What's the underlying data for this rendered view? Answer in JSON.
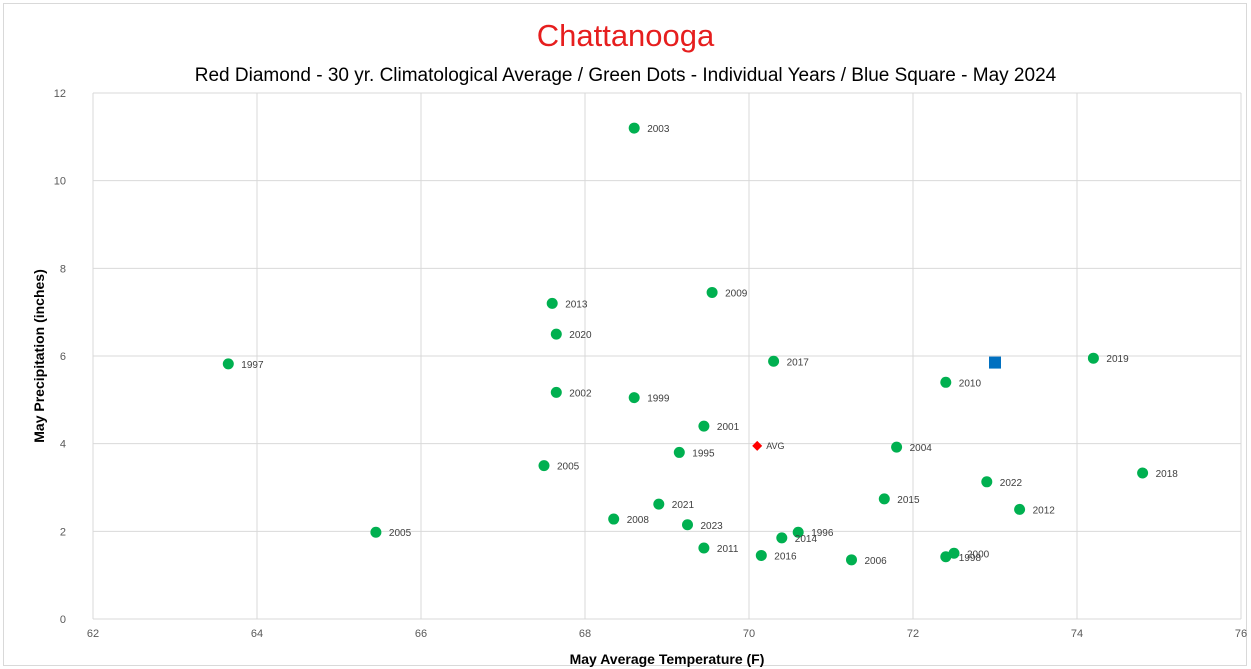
{
  "chart_data": {
    "type": "scatter",
    "title": "Chattanooga",
    "subtitle": "Red Diamond - 30 yr. Climatological Average / Green Dots - Individual Years / Blue Square - May 2024",
    "xlabel": "May Average Temperature (F)",
    "ylabel": "May Precipitation (inches)",
    "xlim": [
      62,
      76
    ],
    "ylim": [
      0,
      12
    ],
    "xticks": [
      62,
      64,
      66,
      68,
      70,
      72,
      74,
      76
    ],
    "yticks": [
      0,
      2,
      4,
      6,
      8,
      10,
      12
    ],
    "grid": true,
    "colors": {
      "years": "#00b050",
      "average": "#ff0000",
      "current": "#0070c0"
    },
    "years": [
      {
        "label": "2003",
        "x": 68.6,
        "y": 11.2
      },
      {
        "label": "2009",
        "x": 69.55,
        "y": 7.45
      },
      {
        "label": "2013",
        "x": 67.6,
        "y": 7.2
      },
      {
        "label": "2020",
        "x": 67.65,
        "y": 6.5
      },
      {
        "label": "1997",
        "x": 63.65,
        "y": 5.82
      },
      {
        "label": "2017",
        "x": 70.3,
        "y": 5.88
      },
      {
        "label": "2019",
        "x": 74.2,
        "y": 5.95
      },
      {
        "label": "2010",
        "x": 72.4,
        "y": 5.4
      },
      {
        "label": "2002",
        "x": 67.65,
        "y": 5.17
      },
      {
        "label": "1999",
        "x": 68.6,
        "y": 5.05
      },
      {
        "label": "2001",
        "x": 69.45,
        "y": 4.4
      },
      {
        "label": "2004",
        "x": 71.8,
        "y": 3.92
      },
      {
        "label": "1995",
        "x": 69.15,
        "y": 3.8
      },
      {
        "label": "2005",
        "x": 67.5,
        "y": 3.5
      },
      {
        "label": "2018",
        "x": 74.8,
        "y": 3.33
      },
      {
        "label": "2022",
        "x": 72.9,
        "y": 3.13
      },
      {
        "label": "2015",
        "x": 71.65,
        "y": 2.74
      },
      {
        "label": "2021",
        "x": 68.9,
        "y": 2.62
      },
      {
        "label": "2012",
        "x": 73.3,
        "y": 2.5
      },
      {
        "label": "2008",
        "x": 68.35,
        "y": 2.28
      },
      {
        "label": "2023",
        "x": 69.25,
        "y": 2.15
      },
      {
        "label": "2005",
        "x": 65.45,
        "y": 1.98
      },
      {
        "label": "1996",
        "x": 70.6,
        "y": 1.98
      },
      {
        "label": "2014",
        "x": 70.4,
        "y": 1.85
      },
      {
        "label": "2011",
        "x": 69.45,
        "y": 1.62
      },
      {
        "label": "2016",
        "x": 70.15,
        "y": 1.45
      },
      {
        "label": "2006",
        "x": 71.25,
        "y": 1.35
      },
      {
        "label": "2000",
        "x": 72.5,
        "y": 1.5
      },
      {
        "label": "1998",
        "x": 72.4,
        "y": 1.42
      }
    ],
    "average": {
      "label": "AVG",
      "x": 70.1,
      "y": 3.95
    },
    "current": {
      "x": 73.0,
      "y": 5.85
    }
  }
}
